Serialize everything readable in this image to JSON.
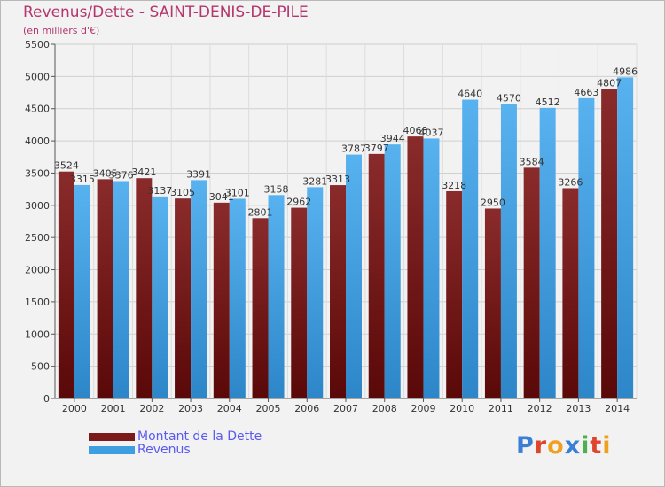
{
  "header": {
    "title": "Revenus/Dette - SAINT-DENIS-DE-PILE",
    "subtitle": "(en milliers d'€)"
  },
  "legend": {
    "items": [
      {
        "label": "Montant de la Dette",
        "color": "#7a1a1a"
      },
      {
        "label": "Revenus",
        "color": "#3d9fe0"
      }
    ]
  },
  "logo": {
    "text": "Proxiti",
    "letters": [
      "P",
      "r",
      "o",
      "x",
      "i",
      "t",
      "i"
    ],
    "colors": [
      "#3a7fd5",
      "#e0442e",
      "#f0a020",
      "#3a7fd5",
      "#4caf50",
      "#e0442e",
      "#f0a020"
    ]
  },
  "chart_data": {
    "type": "bar",
    "categories": [
      "2000",
      "2001",
      "2002",
      "2003",
      "2004",
      "2005",
      "2006",
      "2007",
      "2008",
      "2009",
      "2010",
      "2011",
      "2012",
      "2013",
      "2014"
    ],
    "series": [
      {
        "name": "Montant de la Dette",
        "values": [
          3524,
          3405,
          3421,
          3105,
          3041,
          2801,
          2962,
          3313,
          3797,
          4068,
          3218,
          2950,
          3584,
          3266,
          4807
        ],
        "labels": [
          "3524",
          "3405",
          "3421",
          "3105",
          "3041",
          "2801",
          "2962",
          "3313",
          "3797",
          "4068",
          "3218",
          "2950",
          "3584",
          "3266",
          "4807"
        ],
        "color": "#7a1a1a"
      },
      {
        "name": "Revenus",
        "values": [
          3315,
          3376,
          3137,
          3391,
          3101,
          3158,
          3281,
          3787,
          3944,
          4037,
          4640,
          4570,
          4512,
          4663,
          4986
        ],
        "labels": [
          "3315",
          "3376",
          "3137",
          "3391",
          "3101",
          "3158",
          "3281",
          "3787",
          "3944",
          "4037",
          "4640",
          "4570",
          "4512",
          "4663",
          "4986"
        ],
        "color": "#3d9fe0"
      }
    ],
    "ylim": [
      0,
      5500
    ],
    "yticks": [
      0,
      500,
      1000,
      1500,
      2000,
      2500,
      3000,
      3500,
      4000,
      4500,
      5000,
      5500
    ],
    "title": "Revenus/Dette - SAINT-DENIS-DE-PILE",
    "ylabel": "(en milliers d'€)",
    "grid": true,
    "legend_position": "bottom-left"
  }
}
